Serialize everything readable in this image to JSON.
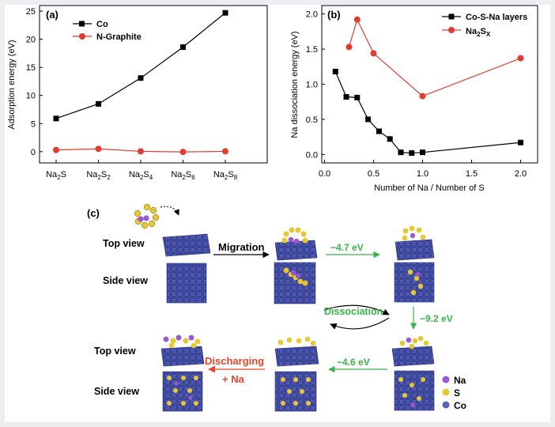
{
  "chart_data": [
    {
      "panel": "(a)",
      "type": "line",
      "categories": [
        "Na2S",
        "Na2S2",
        "Na2S4",
        "Na2S6",
        "Na2S8"
      ],
      "category_labels": [
        {
          "base": "Na",
          "sub1": "2",
          "mid": "S",
          "sub2": ""
        },
        {
          "base": "Na",
          "sub1": "2",
          "mid": "S",
          "sub2": "2"
        },
        {
          "base": "Na",
          "sub1": "2",
          "mid": "S",
          "sub2": "4"
        },
        {
          "base": "Na",
          "sub1": "2",
          "mid": "S",
          "sub2": "6"
        },
        {
          "base": "Na",
          "sub1": "2",
          "mid": "S",
          "sub2": "8"
        }
      ],
      "series": [
        {
          "name": "Co",
          "color": "#000000",
          "marker": "square",
          "values": [
            5.9,
            8.5,
            13.1,
            18.6,
            24.7
          ]
        },
        {
          "name": "N-Graphite",
          "color": "#e03c31",
          "marker": "circle",
          "values": [
            0.3,
            0.5,
            0.05,
            -0.05,
            0.05
          ]
        }
      ],
      "ylabel": "Adsorption energy (eV)",
      "xlabel": "",
      "ylim": [
        -2,
        26
      ],
      "yticks": [
        "0",
        "5",
        "10",
        "15",
        "20",
        "25"
      ],
      "legend": "top-left"
    },
    {
      "panel": "(b)",
      "type": "line",
      "series": [
        {
          "name": "Co-S-Na layers",
          "color": "#000000",
          "marker": "square",
          "x": [
            0.111,
            0.222,
            0.333,
            0.444,
            0.556,
            0.667,
            0.778,
            0.889,
            1.0,
            2.0
          ],
          "y": [
            1.18,
            0.82,
            0.81,
            0.5,
            0.33,
            0.22,
            0.03,
            0.02,
            0.03,
            0.17
          ]
        },
        {
          "name": "Na2Sx",
          "color": "#e03c31",
          "marker": "circle",
          "x": [
            0.25,
            0.333,
            0.5,
            1.0,
            2.0
          ],
          "y": [
            1.53,
            1.92,
            1.44,
            0.83,
            1.37
          ]
        }
      ],
      "legend_labels": [
        {
          "base": "Co-S-Na layers",
          "sub": ""
        },
        {
          "base": "Na",
          "sub": "2",
          "mid": "S",
          "sub2": "X"
        }
      ],
      "xlabel": "Number of Na / Number of S",
      "ylabel": "Na dissociation energy (eV)",
      "xlim": [
        0.0,
        2.1
      ],
      "ylim": [
        -0.12,
        2.12
      ],
      "xticks": [
        "0.0",
        "0.5",
        "1.0",
        "1.5",
        "2.0"
      ],
      "yticks": [
        "0.0",
        "0.5",
        "1.0",
        "1.5",
        "2.0"
      ],
      "legend": "top-right"
    }
  ],
  "panel_c": {
    "label": "(c)",
    "top_view": "Top view",
    "side_view": "Side view",
    "migration": "Migration",
    "dissociation": "Dissociation",
    "discharging": "Discharging",
    "plus_na": "+ Na",
    "energy_1": "−4.7 eV",
    "energy_2": "−9.2 eV",
    "energy_3": "−4.6 eV",
    "legend": [
      {
        "label": "Na",
        "color": "#9b59d0"
      },
      {
        "label": "S",
        "color": "#e8c832"
      },
      {
        "label": "Co",
        "color": "#5b63b8"
      }
    ],
    "colors": {
      "green": "#3ab54a",
      "red": "#e8452c",
      "slab": "#3f4a9e",
      "na": "#9b59d0",
      "s": "#e8c832"
    }
  }
}
